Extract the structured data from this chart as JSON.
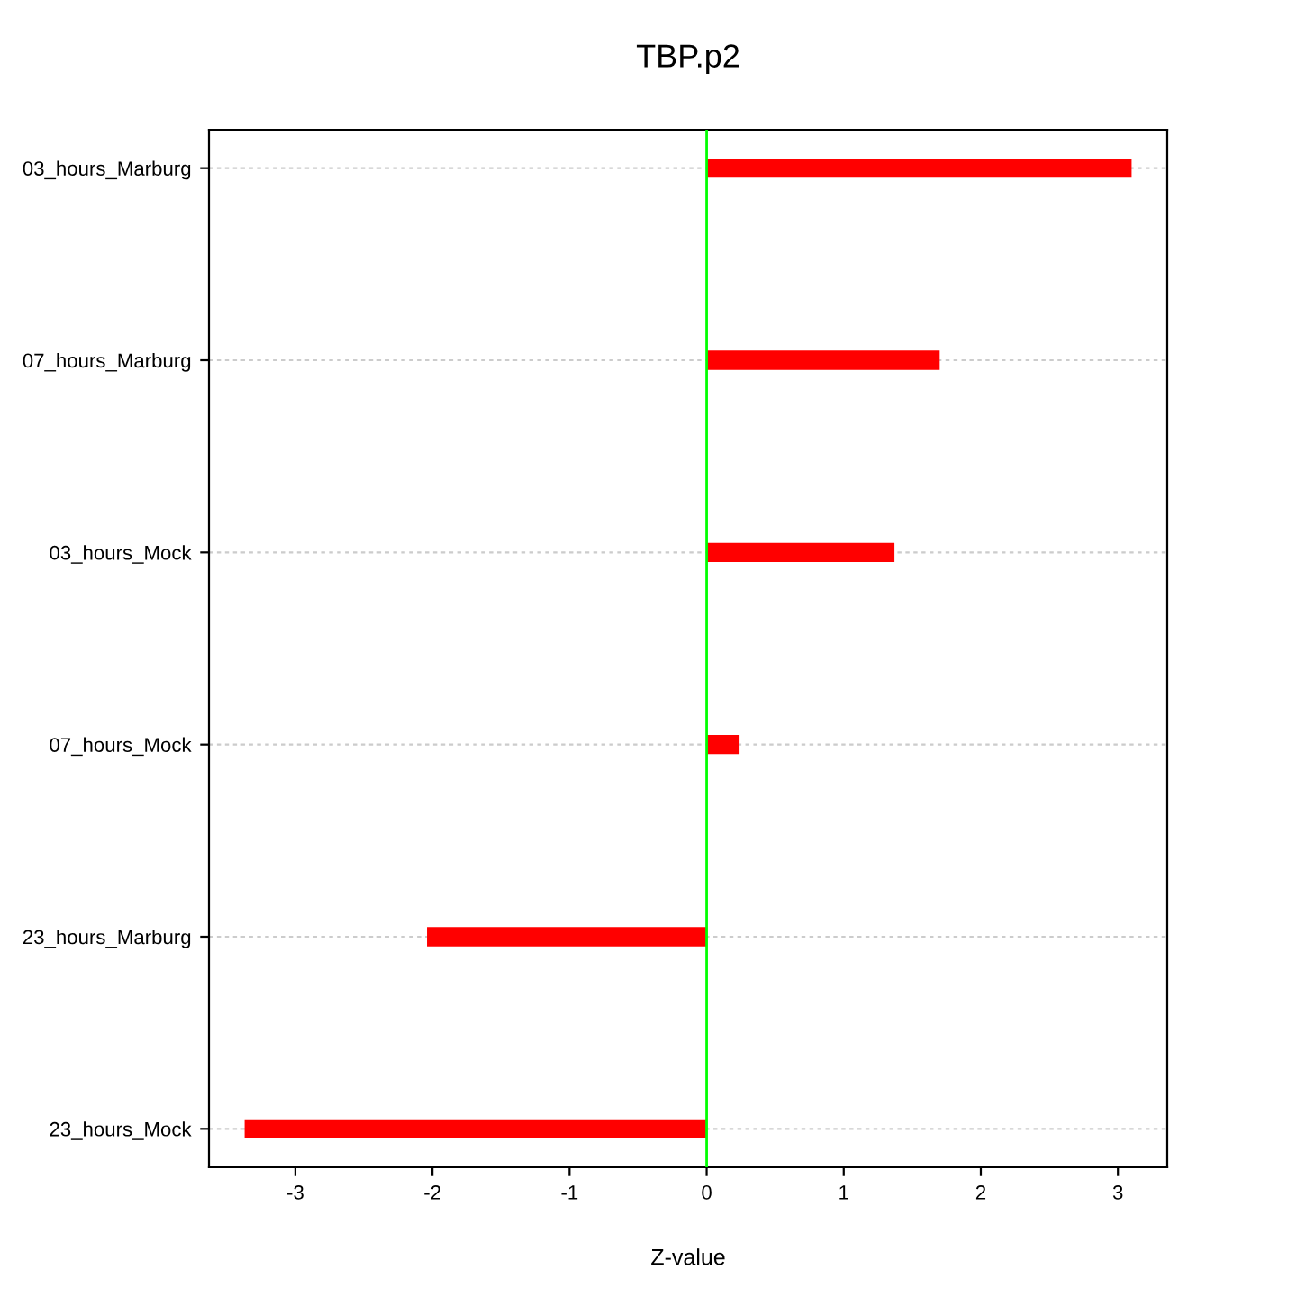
{
  "chart_data": {
    "type": "bar",
    "orientation": "horizontal",
    "title": "TBP.p2",
    "xlabel": "Z-value",
    "categories": [
      "03_hours_Marburg",
      "07_hours_Marburg",
      "03_hours_Mock",
      "07_hours_Mock",
      "23_hours_Marburg",
      "23_hours_Mock"
    ],
    "values": [
      3.1,
      1.7,
      1.37,
      0.24,
      -2.04,
      -3.37
    ],
    "color": "#ff0000",
    "xlim": [
      -3.63,
      3.36
    ],
    "xticks": [
      -3,
      -2,
      -1,
      0,
      1,
      2,
      3
    ],
    "grid": "y",
    "ref_lines": [
      {
        "axis": "x",
        "value": 0,
        "color": "#00ff00"
      }
    ]
  }
}
